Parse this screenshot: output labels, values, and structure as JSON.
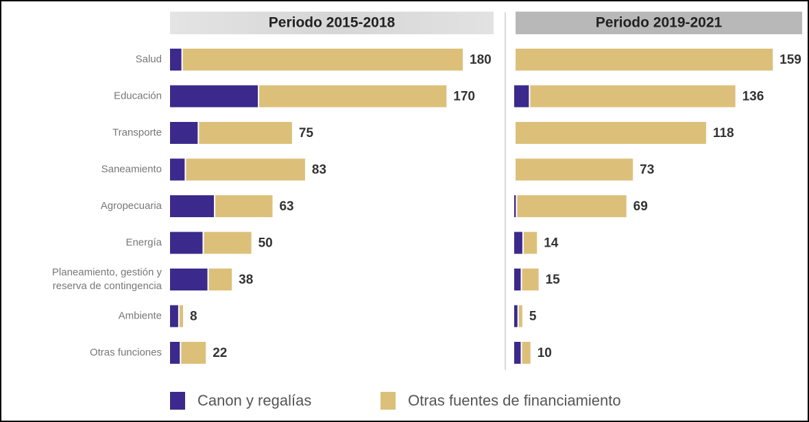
{
  "chart_data": {
    "type": "bar",
    "orientation": "horizontal",
    "stacked": true,
    "categories": [
      "Salud",
      "Educación",
      "Transporte",
      "Saneamiento",
      "Agropecuaria",
      "Energía",
      "Planeamiento, gestión y reserva de contingencia",
      "Ambiente",
      "Otras funciones"
    ],
    "series": [
      {
        "name": "Canon y regalías",
        "color": "#3b2a8c"
      },
      {
        "name": "Otras fuentes de financiamiento",
        "color": "#dcc07a"
      }
    ],
    "xlim": [
      0,
      180
    ],
    "panels": [
      {
        "title": "Periodo 2015-2018",
        "values": [
          [
            7,
            54,
            17,
            9,
            27,
            20,
            23,
            5,
            6
          ],
          [
            173,
            116,
            58,
            74,
            36,
            30,
            15,
            3,
            16
          ]
        ],
        "totals": [
          180,
          170,
          75,
          83,
          63,
          50,
          38,
          8,
          22
        ]
      },
      {
        "title": "Periodo 2019-2021",
        "values": [
          [
            0,
            9,
            0,
            0,
            1,
            5,
            4,
            2,
            4
          ],
          [
            159,
            127,
            118,
            73,
            68,
            9,
            11,
            3,
            6
          ]
        ],
        "totals": [
          159,
          136,
          118,
          73,
          69,
          14,
          15,
          5,
          10
        ]
      }
    ]
  }
}
